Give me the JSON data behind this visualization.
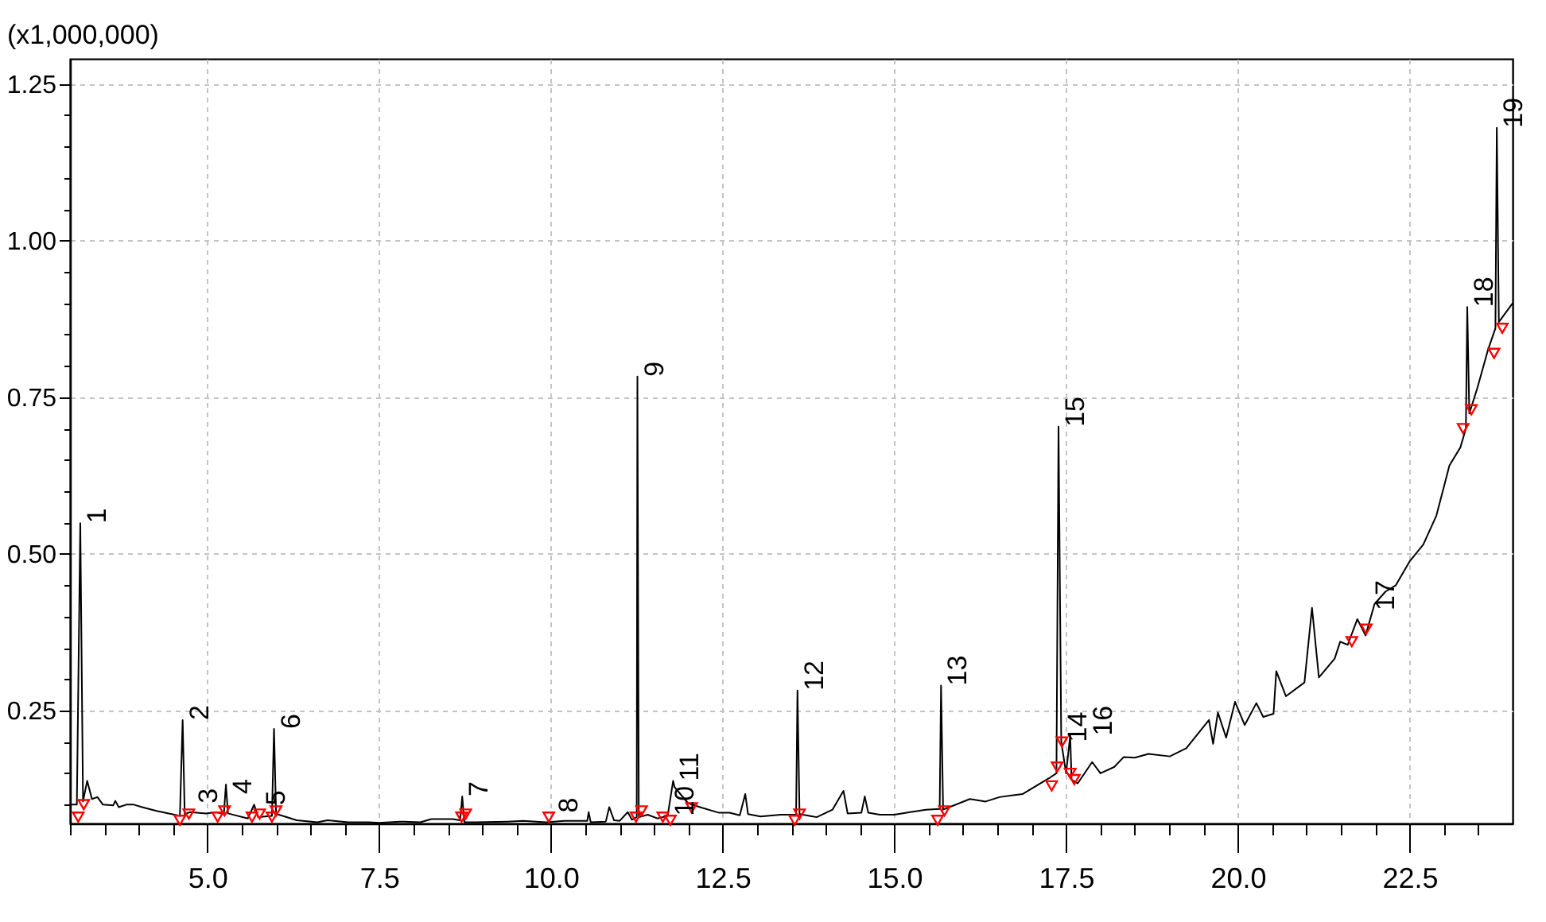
{
  "chart_data": {
    "type": "line",
    "ylabel": "(x1,000,000)",
    "xlim": [
      3,
      24
    ],
    "ylim": [
      0.07,
      1.29
    ],
    "grid": true,
    "marker": "none",
    "line_style": "solid",
    "xticks": [
      {
        "value": 3,
        "label": null
      },
      {
        "value": 3.5,
        "label": null
      },
      {
        "value": 4,
        "label": null
      },
      {
        "value": 4.5,
        "label": null
      },
      {
        "value": 5,
        "label": "5.0"
      },
      {
        "value": 5.5,
        "label": null
      },
      {
        "value": 6,
        "label": null
      },
      {
        "value": 6.5,
        "label": null
      },
      {
        "value": 7,
        "label": null
      },
      7.5,
      {
        "value": 8,
        "label": null
      },
      {
        "value": 8.5,
        "label": null
      },
      {
        "value": 9,
        "label": null
      },
      {
        "value": 9.5,
        "label": null
      },
      {
        "value": 10,
        "label": "10.0"
      },
      {
        "value": 10.5,
        "label": null
      },
      {
        "value": 11,
        "label": null
      },
      {
        "value": 11.5,
        "label": null
      },
      {
        "value": 12,
        "label": null
      },
      12.5,
      {
        "value": 13,
        "label": null
      },
      {
        "value": 13.5,
        "label": null
      },
      {
        "value": 14,
        "label": null
      },
      {
        "value": 14.5,
        "label": null
      },
      {
        "value": 15,
        "label": "15.0"
      },
      {
        "value": 15.5,
        "label": null
      },
      {
        "value": 16,
        "label": null
      },
      {
        "value": 16.5,
        "label": null
      },
      {
        "value": 17,
        "label": null
      },
      17.5,
      {
        "value": 18,
        "label": null
      },
      {
        "value": 18.5,
        "label": null
      },
      {
        "value": 19,
        "label": null
      },
      {
        "value": 19.5,
        "label": null
      },
      {
        "value": 20,
        "label": "20.0"
      },
      {
        "value": 20.5,
        "label": null
      },
      {
        "value": 21,
        "label": null
      },
      {
        "value": 21.5,
        "label": null
      },
      {
        "value": 22,
        "label": null
      },
      22.5,
      {
        "value": 23,
        "label": null
      },
      {
        "value": 23.5,
        "label": null
      }
    ],
    "yticks": [
      {
        "value": 0.1,
        "label": null
      },
      {
        "value": 0.15,
        "label": null
      },
      {
        "value": 0.2,
        "label": null
      },
      0.25,
      {
        "value": 0.3,
        "label": null
      },
      {
        "value": 0.35,
        "label": null
      },
      {
        "value": 0.4,
        "label": null
      },
      {
        "value": 0.45,
        "label": null
      },
      {
        "value": 0.5,
        "label": "0.50"
      },
      {
        "value": 0.55,
        "label": null
      },
      {
        "value": 0.6,
        "label": null
      },
      {
        "value": 0.65,
        "label": null
      },
      {
        "value": 0.7,
        "label": null
      },
      0.75,
      {
        "value": 0.8,
        "label": null
      },
      {
        "value": 0.85,
        "label": null
      },
      {
        "value": 0.9,
        "label": null
      },
      {
        "value": 0.95,
        "label": null
      },
      {
        "value": 1,
        "label": "1.00"
      },
      {
        "value": 1.05,
        "label": null
      },
      {
        "value": 1.1,
        "label": null
      },
      {
        "value": 1.15,
        "label": null
      },
      {
        "value": 1.2,
        "label": null
      },
      1.25
    ],
    "series": [
      {
        "color": "#000000",
        "x": [
          3.0,
          3.1,
          3.15,
          3.19,
          3.25,
          3.32,
          3.4,
          3.48,
          3.63,
          3.66,
          3.71,
          3.82,
          3.93,
          4.05,
          4.26,
          4.48,
          4.6,
          4.64,
          4.67,
          4.75,
          4.98,
          5.13,
          5.24,
          5.27,
          5.3,
          5.59,
          5.68,
          5.74,
          5.94,
          5.97,
          6.0,
          6.07,
          6.3,
          6.6,
          6.75,
          7.05,
          7.35,
          7.5,
          7.8,
          8.1,
          8.26,
          8.57,
          8.68,
          8.71,
          8.74,
          8.9,
          9.37,
          9.6,
          9.93,
          10.2,
          10.53,
          10.55,
          10.58,
          10.8,
          10.85,
          10.92,
          11.0,
          11.12,
          11.18,
          11.25,
          11.26,
          11.28,
          11.41,
          11.55,
          11.7,
          11.78,
          11.8,
          12.0,
          12.2,
          12.45,
          12.6,
          12.75,
          12.83,
          12.87,
          13.05,
          13.35,
          13.57,
          13.59,
          13.62,
          13.87,
          14.1,
          14.26,
          14.32,
          14.52,
          14.57,
          14.62,
          14.79,
          15.0,
          15.23,
          15.46,
          15.66,
          15.68,
          15.71,
          16.1,
          16.33,
          16.53,
          16.87,
          17.25,
          17.36,
          17.39,
          17.43,
          17.5,
          17.56,
          17.58,
          17.67,
          17.88,
          18.0,
          18.2,
          18.34,
          18.5,
          18.7,
          19.01,
          19.25,
          19.58,
          19.64,
          19.71,
          19.83,
          19.96,
          20.1,
          20.27,
          20.37,
          20.52,
          20.56,
          20.7,
          20.97,
          21.08,
          21.18,
          21.41,
          21.49,
          21.6,
          21.74,
          21.86,
          21.99,
          22.15,
          22.3,
          22.5,
          22.7,
          22.89,
          23.0,
          23.08,
          23.24,
          23.32,
          23.34,
          23.37,
          23.49,
          23.64,
          23.75,
          23.77,
          23.8,
          24.0
        ],
        "values": [
          0.1,
          0.1,
          0.549,
          0.105,
          0.138,
          0.109,
          0.112,
          0.1,
          0.099,
          0.106,
          0.096,
          0.1,
          0.1,
          0.096,
          0.09,
          0.085,
          0.082,
          0.235,
          0.085,
          0.088,
          0.086,
          0.088,
          0.085,
          0.132,
          0.086,
          0.078,
          0.1,
          0.08,
          0.082,
          0.221,
          0.085,
          0.083,
          0.075,
          0.072,
          0.075,
          0.072,
          0.072,
          0.071,
          0.073,
          0.072,
          0.077,
          0.077,
          0.075,
          0.113,
          0.072,
          0.072,
          0.073,
          0.074,
          0.072,
          0.074,
          0.074,
          0.088,
          0.072,
          0.073,
          0.096,
          0.075,
          0.074,
          0.088,
          0.076,
          0.08,
          0.783,
          0.08,
          0.084,
          0.078,
          0.082,
          0.138,
          0.128,
          0.102,
          0.095,
          0.087,
          0.087,
          0.083,
          0.117,
          0.085,
          0.081,
          0.084,
          0.084,
          0.282,
          0.085,
          0.08,
          0.092,
          0.122,
          0.086,
          0.087,
          0.113,
          0.087,
          0.084,
          0.084,
          0.088,
          0.092,
          0.093,
          0.29,
          0.092,
          0.109,
          0.105,
          0.112,
          0.117,
          0.142,
          0.15,
          0.703,
          0.2,
          0.15,
          0.21,
          0.14,
          0.134,
          0.168,
          0.15,
          0.16,
          0.176,
          0.175,
          0.181,
          0.177,
          0.19,
          0.235,
          0.197,
          0.247,
          0.207,
          0.264,
          0.227,
          0.262,
          0.24,
          0.245,
          0.313,
          0.273,
          0.295,
          0.414,
          0.303,
          0.333,
          0.36,
          0.355,
          0.396,
          0.37,
          0.42,
          0.44,
          0.45,
          0.488,
          0.515,
          0.561,
          0.607,
          0.641,
          0.67,
          0.7,
          0.894,
          0.724,
          0.766,
          0.825,
          0.86,
          1.18,
          0.87,
          0.9
        ]
      },
      {
        "type": "scatter",
        "color": "#ff0000",
        "marker": "triangle",
        "x": [
          3.12,
          3.2,
          4.6,
          4.73,
          5.15,
          5.25,
          5.65,
          5.76,
          5.94,
          6.0,
          8.7,
          8.76,
          9.97,
          11.24,
          11.32,
          11.63,
          11.74,
          12.05,
          13.55,
          13.62,
          15.63,
          15.73,
          17.29,
          17.37,
          17.44,
          17.56,
          17.62,
          21.66,
          21.87,
          23.28,
          23.4,
          23.73,
          23.85
        ],
        "values": [
          0.08,
          0.1,
          0.075,
          0.085,
          0.08,
          0.09,
          0.08,
          0.085,
          0.08,
          0.09,
          0.08,
          0.085,
          0.08,
          0.08,
          0.09,
          0.08,
          0.075,
          0.095,
          0.075,
          0.085,
          0.075,
          0.09,
          0.13,
          0.16,
          0.2,
          0.15,
          0.14,
          0.36,
          0.38,
          0.7,
          0.73,
          0.82,
          0.86
        ]
      }
    ],
    "annotations": [
      {
        "text": "1",
        "x": 3.15,
        "y": 0.549
      },
      {
        "text": "2",
        "x": 4.64,
        "y": 0.235
      },
      {
        "text": "3",
        "x": 4.77,
        "y": 0.102
      },
      {
        "text": "4",
        "x": 5.27,
        "y": 0.117
      },
      {
        "text": "5",
        "x": 5.75,
        "y": 0.099
      },
      {
        "text": "6",
        "x": 5.97,
        "y": 0.221
      },
      {
        "text": "7",
        "x": 8.71,
        "y": 0.113
      },
      {
        "text": "8",
        "x": 10.02,
        "y": 0.087
      },
      {
        "text": "9",
        "x": 11.26,
        "y": 0.783
      },
      {
        "text": "10",
        "x": 11.7,
        "y": 0.082
      },
      {
        "text": "11",
        "x": 11.78,
        "y": 0.138
      },
      {
        "text": "12",
        "x": 13.59,
        "y": 0.282
      },
      {
        "text": "13",
        "x": 15.68,
        "y": 0.29
      },
      {
        "text": "14",
        "x": 17.43,
        "y": 0.2
      },
      {
        "text": "15",
        "x": 17.39,
        "y": 0.703
      },
      {
        "text": "16",
        "x": 17.56,
        "y": 0.21
      },
      {
        "text": "17",
        "x": 21.9,
        "y": 0.41
      },
      {
        "text": "18",
        "x": 23.34,
        "y": 0.894
      },
      {
        "text": "19",
        "x": 23.77,
        "y": 1.18
      }
    ]
  }
}
